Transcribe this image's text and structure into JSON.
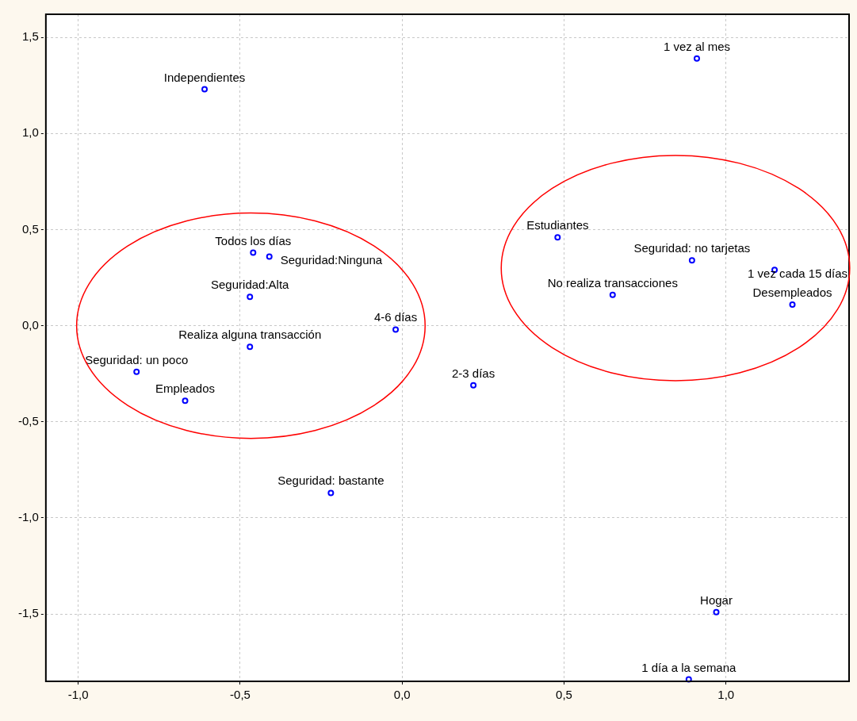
{
  "chart_data": {
    "type": "scatter",
    "x": [
      -0.61,
      -0.46,
      -0.41,
      -0.47,
      -0.02,
      -0.47,
      -0.82,
      -0.67,
      -0.22,
      0.22,
      0.97,
      0.885,
      0.91,
      0.48,
      0.895,
      1.15,
      0.65,
      1.205
    ],
    "values": [
      1.23,
      0.38,
      0.36,
      0.15,
      -0.02,
      -0.11,
      -0.24,
      -0.39,
      -0.87,
      -0.31,
      -1.49,
      -1.84,
      1.39,
      0.46,
      0.34,
      0.29,
      0.16,
      0.11
    ],
    "color": "#0000ff",
    "marker": "circle",
    "grid": true,
    "legend": false,
    "xlim": [
      -1.1,
      1.38
    ],
    "ylim": [
      -1.85,
      1.62
    ],
    "xticks": [
      {
        "value": -1,
        "label": "-1,0"
      },
      {
        "value": -0.5,
        "label": "-0,5"
      },
      {
        "value": 0,
        "label": "0,0"
      },
      {
        "value": 0.5,
        "label": "0,5"
      },
      {
        "value": 1,
        "label": "1,0"
      }
    ],
    "yticks": [
      {
        "value": -1.5,
        "label": "-1,5"
      },
      {
        "value": -1,
        "label": "-1,0"
      },
      {
        "value": -0.5,
        "label": "-0,5"
      },
      {
        "value": 0,
        "label": "0,0"
      },
      {
        "value": 0.5,
        "label": "0,5"
      },
      {
        "value": 1,
        "label": "1,0"
      },
      {
        "value": 1.5,
        "label": "1,5"
      }
    ],
    "annotations": [
      {
        "text": "Independientes",
        "x": -0.61,
        "y": 1.23
      },
      {
        "text": "Todos los días",
        "x": -0.46,
        "y": 0.38
      },
      {
        "text": "Seguridad:Ninguna",
        "x": -0.41,
        "y": 0.36
      },
      {
        "text": "Seguridad:Alta",
        "x": -0.47,
        "y": 0.15
      },
      {
        "text": "4-6 días",
        "x": -0.02,
        "y": -0.02
      },
      {
        "text": "Realiza alguna transacción",
        "x": -0.47,
        "y": -0.11
      },
      {
        "text": "Seguridad: un poco",
        "x": -0.82,
        "y": -0.24
      },
      {
        "text": "Empleados",
        "x": -0.67,
        "y": -0.39
      },
      {
        "text": "Seguridad: bastante",
        "x": -0.22,
        "y": -0.87
      },
      {
        "text": "2-3 días",
        "x": 0.22,
        "y": -0.31
      },
      {
        "text": "Hogar",
        "x": 0.97,
        "y": -1.49
      },
      {
        "text": "1 día a la semana",
        "x": 0.885,
        "y": -1.84
      },
      {
        "text": "1 vez al mes",
        "x": 0.91,
        "y": 1.39
      },
      {
        "text": "Estudiantes",
        "x": 0.48,
        "y": 0.46
      },
      {
        "text": "Seguridad: no tarjetas",
        "x": 0.895,
        "y": 0.34
      },
      {
        "text": "1 vez cada 15 días",
        "x": 1.15,
        "y": 0.29
      },
      {
        "text": "No realiza transacciones",
        "x": 0.65,
        "y": 0.16
      },
      {
        "text": "Desempleados",
        "x": 1.205,
        "y": 0.11
      }
    ]
  }
}
